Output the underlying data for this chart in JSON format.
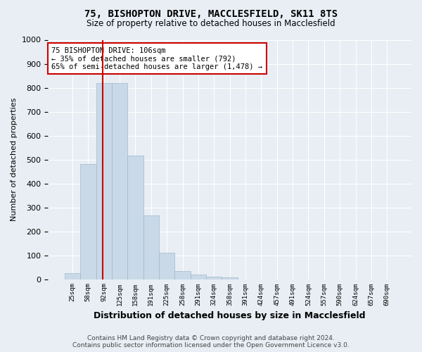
{
  "title": "75, BISHOPTON DRIVE, MACCLESFIELD, SK11 8TS",
  "subtitle": "Size of property relative to detached houses in Macclesfield",
  "xlabel": "Distribution of detached houses by size in Macclesfield",
  "ylabel": "Number of detached properties",
  "footer_line1": "Contains HM Land Registry data © Crown copyright and database right 2024.",
  "footer_line2": "Contains public sector information licensed under the Open Government Licence v3.0.",
  "bin_labels": [
    "25sqm",
    "58sqm",
    "92sqm",
    "125sqm",
    "158sqm",
    "191sqm",
    "225sqm",
    "258sqm",
    "291sqm",
    "324sqm",
    "358sqm",
    "391sqm",
    "424sqm",
    "457sqm",
    "491sqm",
    "524sqm",
    "557sqm",
    "590sqm",
    "624sqm",
    "657sqm",
    "690sqm"
  ],
  "bar_values": [
    25,
    480,
    820,
    820,
    515,
    265,
    110,
    35,
    20,
    10,
    7,
    0,
    0,
    0,
    0,
    0,
    0,
    0,
    0,
    0
  ],
  "bar_color": "#c9d9e8",
  "bar_edge_color": "#a0b8cc",
  "property_sqm": 106,
  "property_bin_index": 2,
  "red_line_color": "#cc0000",
  "annotation_line1": "75 BISHOPTON DRIVE: 106sqm",
  "annotation_line2": "← 35% of detached houses are smaller (792)",
  "annotation_line3": "65% of semi-detached houses are larger (1,478) →",
  "annotation_box_color": "#ffffff",
  "annotation_box_edge": "#cc0000",
  "ylim": [
    0,
    1000
  ],
  "background_color": "#e8eef4",
  "axes_background": "#e8eef4",
  "grid_color": "#ffffff"
}
